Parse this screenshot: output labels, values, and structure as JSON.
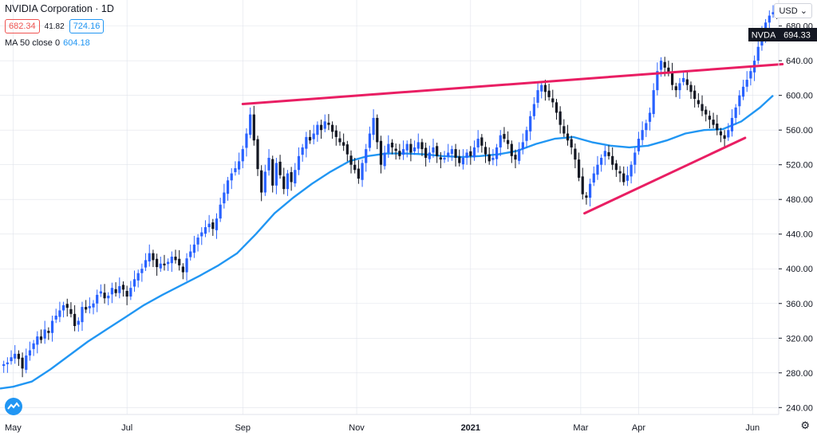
{
  "header": {
    "title": "NVIDIA Corporation · 1D",
    "bid": "682.34",
    "spread": "41.82",
    "ask": "724.16",
    "ma_label": "MA 50 close 0",
    "ma_value": "604.18"
  },
  "currency": "USD",
  "colors": {
    "up": "#2962ff",
    "down": "#131722",
    "ma": "#2196f3",
    "trend": "#e91e63",
    "grid": "#e0e3eb"
  },
  "chart_data": {
    "type": "candlestick",
    "symbol": "NVDA",
    "last_price_label": "694.33",
    "ylim": [
      232,
      710
    ],
    "y_ticks": [
      680,
      640,
      600,
      560,
      520,
      480,
      440,
      400,
      360,
      320,
      280,
      240
    ],
    "x_tick_labels": [
      {
        "label": "May",
        "day": 0
      },
      {
        "label": "Jul",
        "day": 61
      },
      {
        "label": "Sep",
        "day": 123
      },
      {
        "label": "Nov",
        "day": 184
      },
      {
        "label": "2021",
        "day": 245
      },
      {
        "label": "Mar",
        "day": 304
      },
      {
        "label": "Apr",
        "day": 335
      },
      {
        "label": "Jun",
        "day": 396
      }
    ],
    "x_range_days": [
      -7,
      410
    ],
    "candles_close": [
      [
        -5,
        290
      ],
      [
        -3,
        292
      ],
      [
        -1,
        298
      ],
      [
        1,
        302
      ],
      [
        3,
        296
      ],
      [
        5,
        285
      ],
      [
        7,
        300
      ],
      [
        9,
        306
      ],
      [
        11,
        314
      ],
      [
        13,
        322
      ],
      [
        15,
        318
      ],
      [
        17,
        330
      ],
      [
        19,
        326
      ],
      [
        21,
        340
      ],
      [
        23,
        346
      ],
      [
        25,
        352
      ],
      [
        27,
        358
      ],
      [
        29,
        355
      ],
      [
        31,
        348
      ],
      [
        33,
        334
      ],
      [
        35,
        340
      ],
      [
        37,
        356
      ],
      [
        39,
        353
      ],
      [
        41,
        357
      ],
      [
        43,
        360
      ],
      [
        45,
        370
      ],
      [
        47,
        374
      ],
      [
        49,
        366
      ],
      [
        51,
        369
      ],
      [
        53,
        378
      ],
      [
        55,
        372
      ],
      [
        57,
        380
      ],
      [
        59,
        376
      ],
      [
        61,
        368
      ],
      [
        63,
        378
      ],
      [
        65,
        388
      ],
      [
        67,
        395
      ],
      [
        69,
        400
      ],
      [
        71,
        410
      ],
      [
        73,
        418
      ],
      [
        75,
        410
      ],
      [
        77,
        402
      ],
      [
        79,
        406
      ],
      [
        81,
        404
      ],
      [
        83,
        408
      ],
      [
        85,
        414
      ],
      [
        87,
        410
      ],
      [
        89,
        404
      ],
      [
        91,
        396
      ],
      [
        93,
        412
      ],
      [
        95,
        420
      ],
      [
        97,
        428
      ],
      [
        99,
        436
      ],
      [
        101,
        442
      ],
      [
        103,
        448
      ],
      [
        105,
        452
      ],
      [
        107,
        446
      ],
      [
        109,
        458
      ],
      [
        111,
        474
      ],
      [
        113,
        488
      ],
      [
        115,
        502
      ],
      [
        117,
        510
      ],
      [
        119,
        516
      ],
      [
        121,
        524
      ],
      [
        123,
        538
      ],
      [
        125,
        556
      ],
      [
        127,
        578
      ],
      [
        129,
        548
      ],
      [
        131,
        515
      ],
      [
        133,
        488
      ],
      [
        135,
        512
      ],
      [
        137,
        528
      ],
      [
        139,
        496
      ],
      [
        141,
        522
      ],
      [
        143,
        508
      ],
      [
        145,
        492
      ],
      [
        147,
        510
      ],
      [
        149,
        500
      ],
      [
        151,
        514
      ],
      [
        153,
        530
      ],
      [
        155,
        540
      ],
      [
        157,
        552
      ],
      [
        159,
        548
      ],
      [
        161,
        556
      ],
      [
        163,
        566
      ],
      [
        165,
        560
      ],
      [
        167,
        570
      ],
      [
        169,
        566
      ],
      [
        171,
        558
      ],
      [
        173,
        552
      ],
      [
        175,
        546
      ],
      [
        177,
        542
      ],
      [
        179,
        532
      ],
      [
        181,
        520
      ],
      [
        183,
        514
      ],
      [
        185,
        504
      ],
      [
        187,
        522
      ],
      [
        189,
        538
      ],
      [
        191,
        556
      ],
      [
        193,
        574
      ],
      [
        195,
        546
      ],
      [
        197,
        520
      ],
      [
        199,
        534
      ],
      [
        201,
        544
      ],
      [
        203,
        540
      ],
      [
        205,
        536
      ],
      [
        207,
        530
      ],
      [
        209,
        538
      ],
      [
        211,
        544
      ],
      [
        213,
        534
      ],
      [
        215,
        540
      ],
      [
        217,
        546
      ],
      [
        219,
        538
      ],
      [
        221,
        528
      ],
      [
        223,
        534
      ],
      [
        225,
        540
      ],
      [
        227,
        530
      ],
      [
        229,
        526
      ],
      [
        231,
        528
      ],
      [
        233,
        534
      ],
      [
        235,
        538
      ],
      [
        237,
        528
      ],
      [
        239,
        522
      ],
      [
        241,
        528
      ],
      [
        243,
        534
      ],
      [
        245,
        530
      ],
      [
        247,
        540
      ],
      [
        249,
        550
      ],
      [
        251,
        542
      ],
      [
        253,
        532
      ],
      [
        255,
        524
      ],
      [
        257,
        528
      ],
      [
        259,
        540
      ],
      [
        261,
        554
      ],
      [
        263,
        550
      ],
      [
        265,
        544
      ],
      [
        267,
        530
      ],
      [
        269,
        526
      ],
      [
        271,
        538
      ],
      [
        273,
        546
      ],
      [
        275,
        560
      ],
      [
        277,
        576
      ],
      [
        279,
        590
      ],
      [
        281,
        606
      ],
      [
        283,
        612
      ],
      [
        285,
        604
      ],
      [
        287,
        598
      ],
      [
        289,
        592
      ],
      [
        291,
        580
      ],
      [
        293,
        566
      ],
      [
        295,
        556
      ],
      [
        297,
        548
      ],
      [
        299,
        540
      ],
      [
        301,
        526
      ],
      [
        303,
        505
      ],
      [
        305,
        486
      ],
      [
        307,
        482
      ],
      [
        309,
        498
      ],
      [
        311,
        510
      ],
      [
        313,
        520
      ],
      [
        315,
        528
      ],
      [
        317,
        536
      ],
      [
        319,
        530
      ],
      [
        321,
        520
      ],
      [
        323,
        514
      ],
      [
        325,
        510
      ],
      [
        327,
        500
      ],
      [
        329,
        508
      ],
      [
        331,
        520
      ],
      [
        333,
        534
      ],
      [
        335,
        550
      ],
      [
        337,
        560
      ],
      [
        339,
        568
      ],
      [
        341,
        580
      ],
      [
        343,
        606
      ],
      [
        345,
        628
      ],
      [
        347,
        640
      ],
      [
        349,
        632
      ],
      [
        351,
        626
      ],
      [
        353,
        612
      ],
      [
        355,
        606
      ],
      [
        357,
        614
      ],
      [
        359,
        620
      ],
      [
        361,
        612
      ],
      [
        363,
        604
      ],
      [
        365,
        596
      ],
      [
        367,
        590
      ],
      [
        369,
        582
      ],
      [
        371,
        578
      ],
      [
        373,
        572
      ],
      [
        375,
        566
      ],
      [
        377,
        560
      ],
      [
        379,
        554
      ],
      [
        381,
        550
      ],
      [
        383,
        560
      ],
      [
        385,
        574
      ],
      [
        387,
        586
      ],
      [
        389,
        600
      ],
      [
        391,
        610
      ],
      [
        393,
        618
      ],
      [
        395,
        628
      ],
      [
        397,
        640
      ],
      [
        399,
        656
      ],
      [
        401,
        670
      ],
      [
        403,
        684
      ],
      [
        405,
        692
      ],
      [
        407,
        696
      ],
      [
        409,
        694
      ]
    ],
    "ma50": [
      [
        -7,
        262
      ],
      [
        0,
        264
      ],
      [
        10,
        270
      ],
      [
        20,
        284
      ],
      [
        30,
        300
      ],
      [
        40,
        316
      ],
      [
        50,
        330
      ],
      [
        60,
        344
      ],
      [
        70,
        358
      ],
      [
        80,
        370
      ],
      [
        90,
        381
      ],
      [
        100,
        392
      ],
      [
        110,
        404
      ],
      [
        120,
        418
      ],
      [
        130,
        440
      ],
      [
        140,
        464
      ],
      [
        150,
        482
      ],
      [
        160,
        498
      ],
      [
        170,
        512
      ],
      [
        180,
        524
      ],
      [
        190,
        530
      ],
      [
        200,
        533
      ],
      [
        210,
        533
      ],
      [
        220,
        532
      ],
      [
        230,
        530
      ],
      [
        240,
        529
      ],
      [
        250,
        530
      ],
      [
        260,
        532
      ],
      [
        270,
        536
      ],
      [
        280,
        544
      ],
      [
        290,
        550
      ],
      [
        300,
        552
      ],
      [
        310,
        546
      ],
      [
        320,
        542
      ],
      [
        330,
        540
      ],
      [
        340,
        542
      ],
      [
        350,
        548
      ],
      [
        360,
        556
      ],
      [
        370,
        560
      ],
      [
        380,
        561
      ],
      [
        390,
        570
      ],
      [
        400,
        586
      ],
      [
        407,
        600
      ]
    ],
    "trendlines": [
      {
        "from": [
          123,
          590
        ],
        "to": [
          412,
          636
        ]
      },
      {
        "from": [
          306,
          464
        ],
        "to": [
          392,
          551
        ]
      }
    ]
  }
}
